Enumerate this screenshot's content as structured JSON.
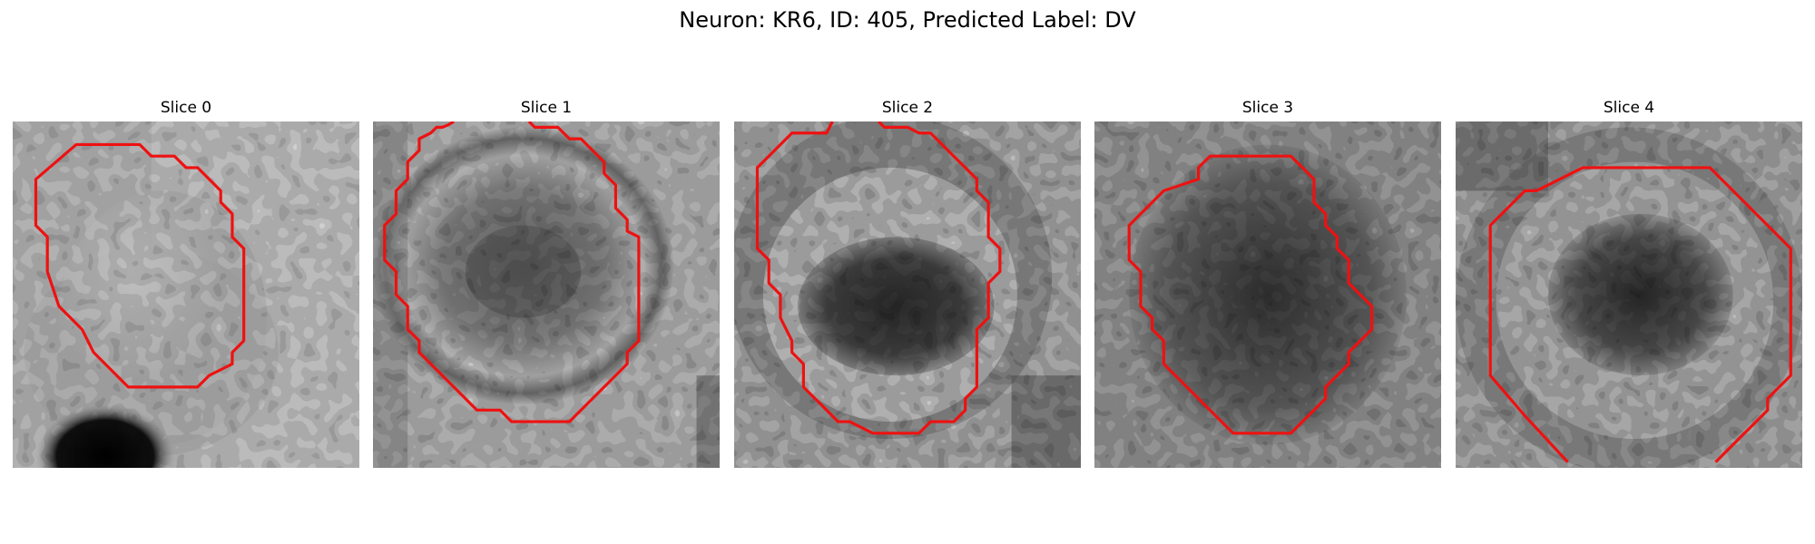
{
  "figure": {
    "title": "Neuron: KR6, ID: 405, Predicted Label: DV"
  },
  "colors": {
    "contour": "#ee1111",
    "colormap": "gray"
  },
  "panels": [
    {
      "title": "Slice 0"
    },
    {
      "title": "Slice 1"
    },
    {
      "title": "Slice 2"
    },
    {
      "title": "Slice 3"
    },
    {
      "title": "Slice 4"
    }
  ]
}
